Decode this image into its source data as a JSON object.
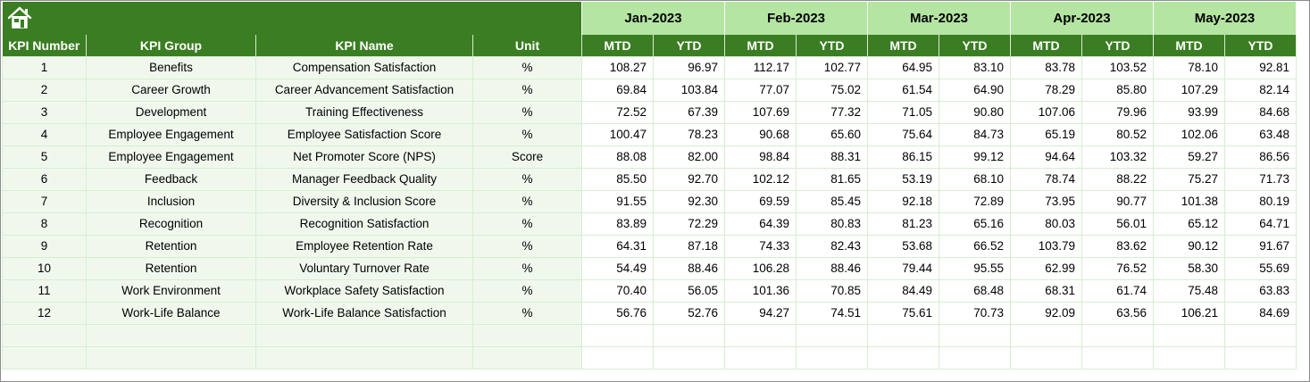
{
  "months": [
    "Jan-2023",
    "Feb-2023",
    "Mar-2023",
    "Apr-2023",
    "May-2023"
  ],
  "headers": {
    "kpi_number": "KPI Number",
    "kpi_group": "KPI Group",
    "kpi_name": "KPI Name",
    "unit": "Unit",
    "mtd": "MTD",
    "ytd": "YTD"
  },
  "rows": [
    {
      "num": "1",
      "group": "Benefits",
      "name": "Compensation Satisfaction",
      "unit": "%",
      "values": [
        "108.27",
        "96.97",
        "112.17",
        "102.77",
        "64.95",
        "83.10",
        "83.78",
        "103.52",
        "78.10",
        "92.81"
      ]
    },
    {
      "num": "2",
      "group": "Career Growth",
      "name": "Career Advancement Satisfaction",
      "unit": "%",
      "values": [
        "69.84",
        "103.84",
        "77.07",
        "75.02",
        "61.54",
        "64.90",
        "78.29",
        "85.80",
        "107.29",
        "82.14"
      ]
    },
    {
      "num": "3",
      "group": "Development",
      "name": "Training Effectiveness",
      "unit": "%",
      "values": [
        "72.52",
        "67.39",
        "107.69",
        "77.32",
        "71.05",
        "90.80",
        "107.06",
        "79.96",
        "93.99",
        "84.68"
      ]
    },
    {
      "num": "4",
      "group": "Employee Engagement",
      "name": "Employee Satisfaction Score",
      "unit": "%",
      "values": [
        "100.47",
        "78.23",
        "90.68",
        "65.60",
        "75.64",
        "84.73",
        "65.19",
        "80.52",
        "102.06",
        "63.48"
      ]
    },
    {
      "num": "5",
      "group": "Employee Engagement",
      "name": "Net Promoter Score (NPS)",
      "unit": "Score",
      "values": [
        "88.08",
        "82.00",
        "98.84",
        "88.31",
        "86.15",
        "99.12",
        "94.64",
        "103.32",
        "59.27",
        "86.56"
      ]
    },
    {
      "num": "6",
      "group": "Feedback",
      "name": "Manager Feedback Quality",
      "unit": "%",
      "values": [
        "85.50",
        "92.70",
        "102.12",
        "81.65",
        "53.19",
        "68.10",
        "78.74",
        "88.22",
        "75.27",
        "71.73"
      ]
    },
    {
      "num": "7",
      "group": "Inclusion",
      "name": "Diversity & Inclusion Score",
      "unit": "%",
      "values": [
        "91.55",
        "92.30",
        "69.59",
        "85.45",
        "92.18",
        "72.89",
        "73.95",
        "90.77",
        "101.38",
        "80.19"
      ]
    },
    {
      "num": "8",
      "group": "Recognition",
      "name": "Recognition Satisfaction",
      "unit": "%",
      "values": [
        "83.89",
        "72.29",
        "64.39",
        "80.83",
        "81.23",
        "65.16",
        "80.03",
        "56.01",
        "65.12",
        "64.71"
      ]
    },
    {
      "num": "9",
      "group": "Retention",
      "name": "Employee Retention Rate",
      "unit": "%",
      "values": [
        "64.31",
        "87.18",
        "74.33",
        "82.43",
        "53.68",
        "66.52",
        "103.79",
        "83.62",
        "90.12",
        "91.67"
      ]
    },
    {
      "num": "10",
      "group": "Retention",
      "name": "Voluntary Turnover Rate",
      "unit": "%",
      "values": [
        "54.49",
        "88.46",
        "106.28",
        "88.46",
        "79.44",
        "95.55",
        "62.99",
        "76.52",
        "58.30",
        "55.69"
      ]
    },
    {
      "num": "11",
      "group": "Work Environment",
      "name": "Workplace Safety Satisfaction",
      "unit": "%",
      "values": [
        "70.40",
        "56.05",
        "101.36",
        "70.85",
        "84.49",
        "68.48",
        "68.31",
        "61.74",
        "75.48",
        "63.83"
      ]
    },
    {
      "num": "12",
      "group": "Work-Life Balance",
      "name": "Work-Life Balance Satisfaction",
      "unit": "%",
      "values": [
        "56.76",
        "52.76",
        "94.27",
        "74.51",
        "75.61",
        "70.73",
        "92.09",
        "63.56",
        "106.21",
        "84.69"
      ]
    }
  ],
  "colors": {
    "header_green": "#3a7d22",
    "month_green": "#b4e5a2",
    "info_fill": "#f0f8ee"
  },
  "icons": {
    "home": "home-icon"
  }
}
